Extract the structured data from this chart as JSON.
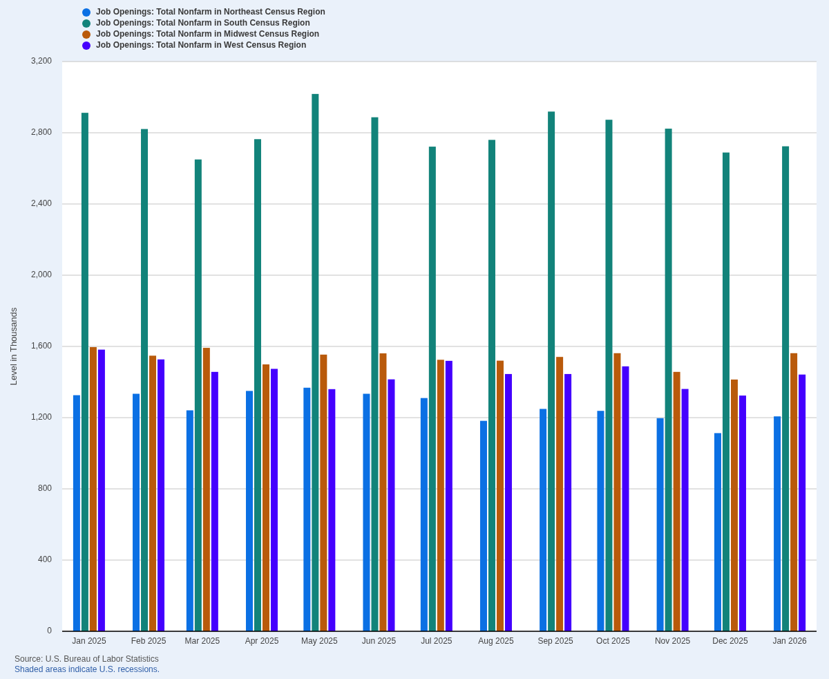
{
  "chart_data": {
    "type": "bar",
    "x": [
      "2025-01",
      "2025-02",
      "2025-03",
      "2025-04",
      "2025-05",
      "2025-06",
      "2025-07",
      "2025-08",
      "2025-09",
      "2025-10",
      "2025-11",
      "2025-12",
      "2026-01"
    ],
    "series": [
      {
        "name": "Job Openings: Total Nonfarm in Northeast Census Region",
        "color": "#0b70e4",
        "values": [
          1326,
          1334,
          1241,
          1350,
          1368,
          1334,
          1310,
          1182,
          1249,
          1238,
          1197,
          1113,
          1207
        ]
      },
      {
        "name": "Job Openings: Total Nonfarm in South Census Region",
        "color": "#12837a",
        "values": [
          2912,
          2821,
          2650,
          2764,
          3018,
          2887,
          2722,
          2760,
          2919,
          2873,
          2823,
          2689,
          2724
        ]
      },
      {
        "name": "Job Openings: Total Nonfarm in Midwest Census Region",
        "color": "#b95a0b",
        "values": [
          1596,
          1548,
          1592,
          1499,
          1554,
          1561,
          1525,
          1520,
          1541,
          1562,
          1457,
          1414,
          1562
        ]
      },
      {
        "name": "Job Openings: Total Nonfarm in West Census Region",
        "color": "#4400fe",
        "values": [
          1582,
          1527,
          1457,
          1474,
          1360,
          1415,
          1519,
          1445,
          1445,
          1488,
          1361,
          1324,
          1442
        ]
      }
    ],
    "xlim": [
      "2024-12-18",
      "2026-01-15"
    ],
    "xticks": [
      {
        "value": "2025-01",
        "label": "Jan 2025"
      },
      {
        "value": "2025-02",
        "label": "Feb 2025"
      },
      {
        "value": "2025-03",
        "label": "Mar 2025"
      },
      {
        "value": "2025-04",
        "label": "Apr 2025"
      },
      {
        "value": "2025-05",
        "label": "May 2025"
      },
      {
        "value": "2025-06",
        "label": "Jun 2025"
      },
      {
        "value": "2025-07",
        "label": "Jul 2025"
      },
      {
        "value": "2025-08",
        "label": "Aug 2025"
      },
      {
        "value": "2025-09",
        "label": "Sep 2025"
      },
      {
        "value": "2025-10",
        "label": "Oct 2025"
      },
      {
        "value": "2025-11",
        "label": "Nov 2025"
      },
      {
        "value": "2025-12",
        "label": "Dec 2025"
      },
      {
        "value": "2026-01",
        "label": "Jan 2026"
      }
    ],
    "ylim": [
      0,
      3200
    ],
    "yticks": [
      0,
      400,
      800,
      {
        "value": 1200,
        "label": "1,200"
      },
      {
        "value": 1600,
        "label": "1,600"
      },
      {
        "value": 2000,
        "label": "2,000"
      },
      {
        "value": 2400,
        "label": "2,400"
      },
      {
        "value": 2800,
        "label": "2,800"
      },
      {
        "value": 3200,
        "label": "3,200"
      }
    ],
    "ylabel": "Level in Thousands",
    "grid": "y",
    "legend": "top left",
    "annotations": [
      "Source: U.S. Bureau of Labor Statistics",
      "Shaded areas indicate U.S. recessions."
    ]
  }
}
